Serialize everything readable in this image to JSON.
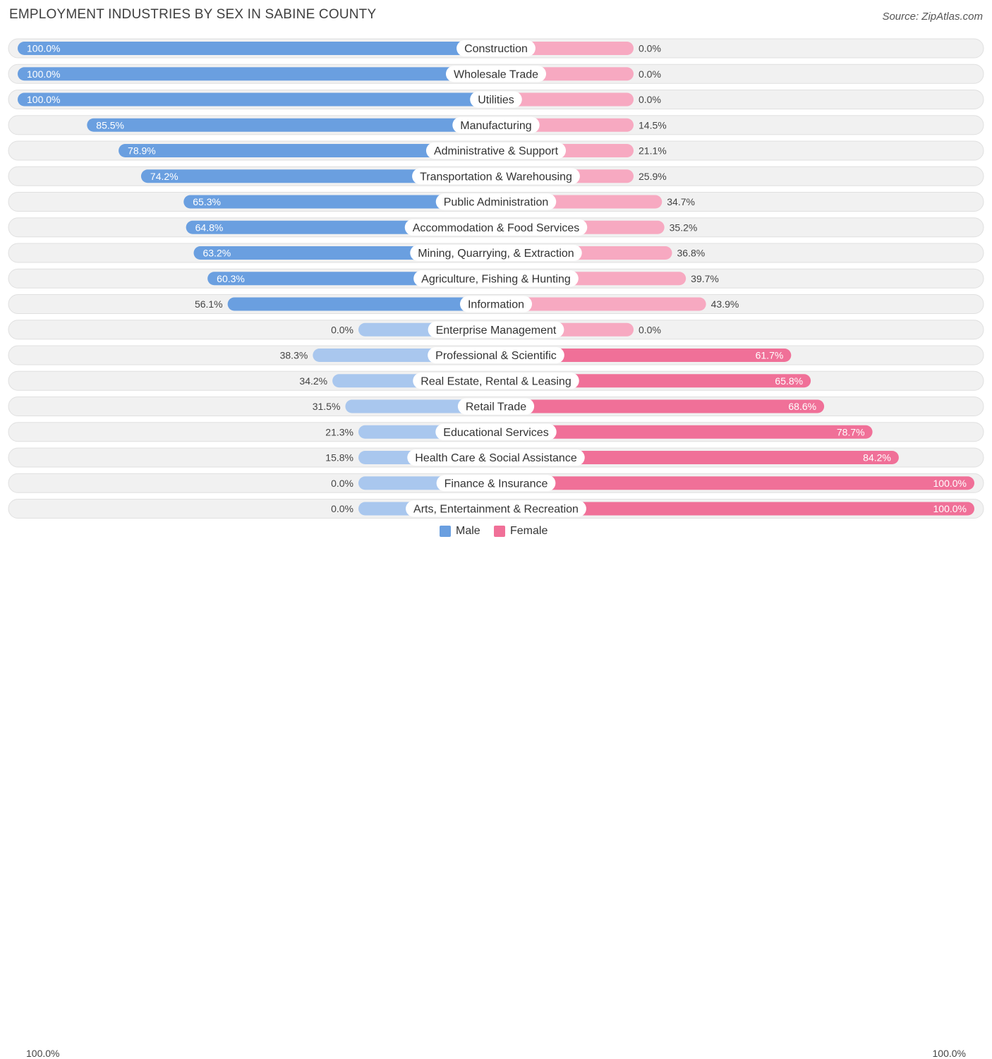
{
  "page": {
    "title": "EMPLOYMENT INDUSTRIES BY SEX IN SABINE COUNTY",
    "source": "Source: ZipAtlas.com"
  },
  "colors": {
    "male_strong": "#6a9fe0",
    "male_light": "#a9c7ee",
    "female_strong": "#f07098",
    "female_light": "#f7a9c1",
    "track": "#f1f1f1",
    "track_border": "#e0e0e0"
  },
  "chart_data": {
    "type": "bar",
    "orientation": "diverging-horizontal",
    "title": "EMPLOYMENT INDUSTRIES BY SEX IN SABINE COUNTY",
    "unit": "%",
    "xlim": [
      0,
      100
    ],
    "axis_labels": {
      "left": "100.0%",
      "right": "100.0%"
    },
    "legend": [
      {
        "key": "male",
        "label": "Male"
      },
      {
        "key": "female",
        "label": "Female"
      }
    ],
    "categories": [
      "Construction",
      "Wholesale Trade",
      "Utilities",
      "Manufacturing",
      "Administrative & Support",
      "Transportation & Warehousing",
      "Public Administration",
      "Accommodation & Food Services",
      "Mining, Quarrying, & Extraction",
      "Agriculture, Fishing & Hunting",
      "Information",
      "Enterprise Management",
      "Professional & Scientific",
      "Real Estate, Rental & Leasing",
      "Retail Trade",
      "Educational Services",
      "Health Care & Social Assistance",
      "Finance & Insurance",
      "Arts, Entertainment & Recreation"
    ],
    "series": [
      {
        "name": "Male",
        "values": [
          100.0,
          100.0,
          100.0,
          85.5,
          78.9,
          74.2,
          65.3,
          64.8,
          63.2,
          60.3,
          56.1,
          0.0,
          38.3,
          34.2,
          31.5,
          21.3,
          15.8,
          0.0,
          0.0
        ],
        "labels": [
          "100.0%",
          "100.0%",
          "100.0%",
          "85.5%",
          "78.9%",
          "74.2%",
          "65.3%",
          "64.8%",
          "63.2%",
          "60.3%",
          "56.1%",
          "0.0%",
          "38.3%",
          "34.2%",
          "31.5%",
          "21.3%",
          "15.8%",
          "0.0%",
          "0.0%"
        ]
      },
      {
        "name": "Female",
        "values": [
          0.0,
          0.0,
          0.0,
          14.5,
          21.1,
          25.9,
          34.7,
          35.2,
          36.8,
          39.7,
          43.9,
          0.0,
          61.7,
          65.8,
          68.6,
          78.7,
          84.2,
          100.0,
          100.0
        ],
        "labels": [
          "0.0%",
          "0.0%",
          "0.0%",
          "14.5%",
          "21.1%",
          "25.9%",
          "34.7%",
          "35.2%",
          "36.8%",
          "39.7%",
          "43.9%",
          "0.0%",
          "61.7%",
          "65.8%",
          "68.6%",
          "78.7%",
          "84.2%",
          "100.0%",
          "100.0%"
        ]
      }
    ]
  }
}
